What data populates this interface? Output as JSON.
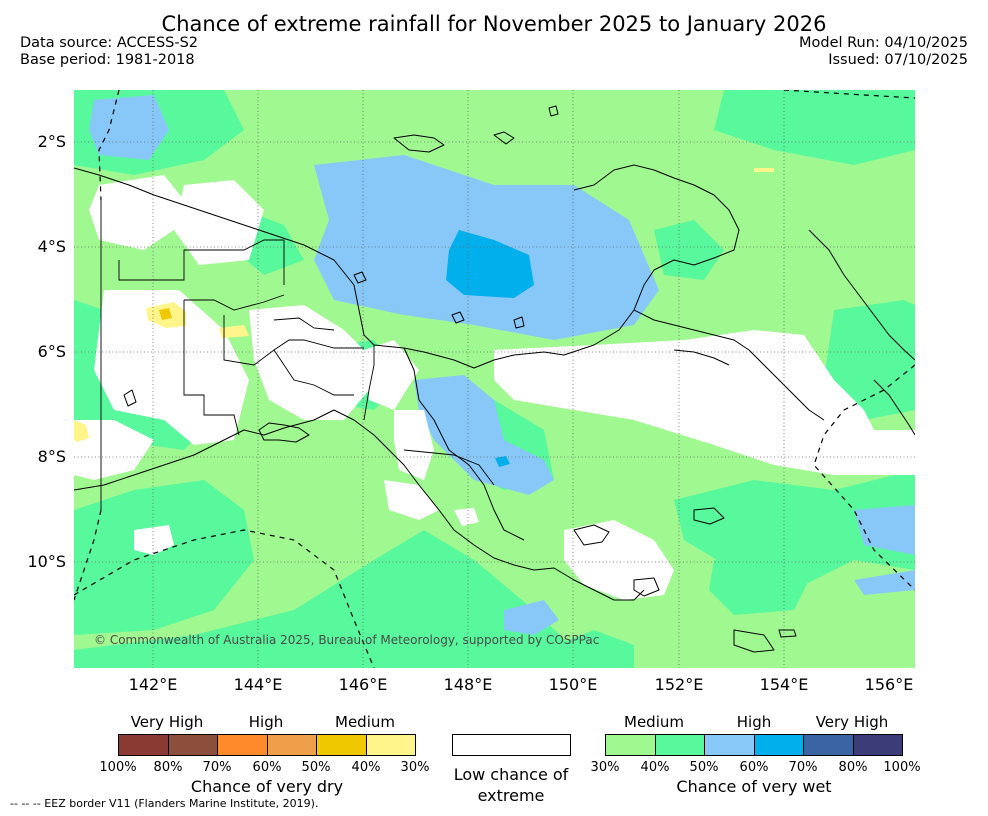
{
  "title": "Chance of extreme rainfall for November 2025 to January 2026",
  "meta": {
    "data_source": "Data source: ACCESS-S2",
    "base_period": "Base period: 1981-2018",
    "model_run": "Model Run: 04/10/2025",
    "issued": "Issued: 07/10/2025"
  },
  "map": {
    "lat_labels": [
      "2°S",
      "4°S",
      "6°S",
      "8°S",
      "10°S"
    ],
    "lat_values": [
      -2,
      -4,
      -6,
      -8,
      -10
    ],
    "lon_labels": [
      "142°E",
      "144°E",
      "146°E",
      "148°E",
      "150°E",
      "152°E",
      "154°E",
      "156°E"
    ],
    "lon_values": [
      142,
      144,
      146,
      148,
      150,
      152,
      154,
      156
    ],
    "extent": {
      "lon": [
        140.5,
        156.5
      ],
      "lat": [
        -1,
        -12
      ]
    },
    "gridlines": true,
    "copyright": "© Commonwealth of Australia 2025, Bureau of Meteorology, supported by COSPPac"
  },
  "legend": {
    "dry": {
      "levels": [
        "Very High",
        "High",
        "Medium"
      ],
      "colors": [
        "#8b3a33",
        "#8c4f3c",
        "#ff8a2a",
        "#ef9f4a",
        "#f0c800",
        "#fff58a"
      ],
      "ticks": [
        "100%",
        "80%",
        "70%",
        "60%",
        "50%",
        "40%",
        "30%"
      ],
      "title": "Chance of very dry"
    },
    "low": {
      "color": "#ffffff",
      "title": "Low chance of extreme"
    },
    "wet": {
      "levels": [
        "Medium",
        "High",
        "Very High"
      ],
      "colors": [
        "#a0f890",
        "#58f89c",
        "#88c8f8",
        "#00b0ec",
        "#3a64a4",
        "#3c3c78"
      ],
      "ticks": [
        "30%",
        "40%",
        "50%",
        "60%",
        "70%",
        "80%",
        "100%"
      ],
      "title": "Chance of very wet"
    }
  },
  "eez_note": "--  --  -- EEZ border V11 (Flanders Marine Institute, 2019)."
}
